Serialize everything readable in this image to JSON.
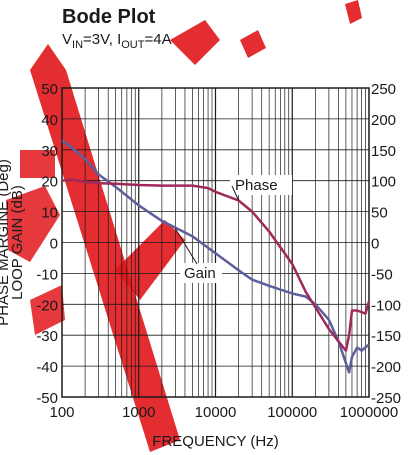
{
  "header": {
    "title": "Bode Plot",
    "subtitle": {
      "vin_prefix": "V",
      "vin_sub": "IN",
      "vin_value": "=3V, I",
      "iout_sub": "OUT",
      "iout_value": "=4A"
    }
  },
  "watermark": {
    "color": "#e0161b"
  },
  "chart_data": {
    "type": "line",
    "xlabel": "FREQUENCY (Hz)",
    "ylabel_left": "LOOP GAIN (dB)",
    "ylabel_left2": "PHASE MARGINE (Deg)",
    "xscale": "log",
    "xlim": [
      100,
      1000000
    ],
    "ylim_left": [
      -50,
      50
    ],
    "ylim_right": [
      -250,
      250
    ],
    "x_ticks": [
      "100",
      "1000",
      "10000",
      "100000",
      "1000000"
    ],
    "y_left_ticks": [
      "50",
      "40",
      "30",
      "20",
      "10",
      "0",
      "-10",
      "-20",
      "-30",
      "-40",
      "-50"
    ],
    "y_right_ticks": [
      "250",
      "200",
      "150",
      "100",
      "50",
      "0",
      "-50",
      "-100",
      "-150",
      "-200",
      "-250"
    ],
    "grid": true,
    "series": [
      {
        "name": "Gain",
        "axis": "left",
        "color": "#5b5f9c",
        "x": [
          100,
          130,
          200,
          300,
          500,
          1000,
          2000,
          5000,
          10000,
          20000,
          30000,
          50000,
          100000,
          150000,
          200000,
          300000,
          400000,
          500000,
          550000,
          600000,
          700000,
          800000,
          1000000
        ],
        "y": [
          33,
          31,
          27,
          22,
          18,
          12,
          7,
          2,
          -3.5,
          -9,
          -12,
          -14,
          -16.5,
          -17.5,
          -20,
          -25,
          -32,
          -39,
          -42,
          -37,
          -34,
          -35,
          -33
        ]
      },
      {
        "name": "Phase",
        "axis": "right",
        "color": "#a0285a",
        "x": [
          100,
          130,
          200,
          300,
          500,
          700,
          1000,
          2000,
          5000,
          8000,
          10000,
          20000,
          30000,
          50000,
          100000,
          150000,
          200000,
          300000,
          400000,
          500000,
          550000,
          600000,
          700000,
          900000,
          1000000
        ],
        "y": [
          100,
          102,
          98,
          96,
          95,
          94,
          93,
          92,
          92,
          88,
          82,
          68,
          50,
          18,
          -35,
          -80,
          -105,
          -140,
          -160,
          -175,
          -150,
          -110,
          -110,
          -115,
          -95
        ]
      }
    ],
    "annotations": [
      "Phase",
      "Gain"
    ]
  }
}
